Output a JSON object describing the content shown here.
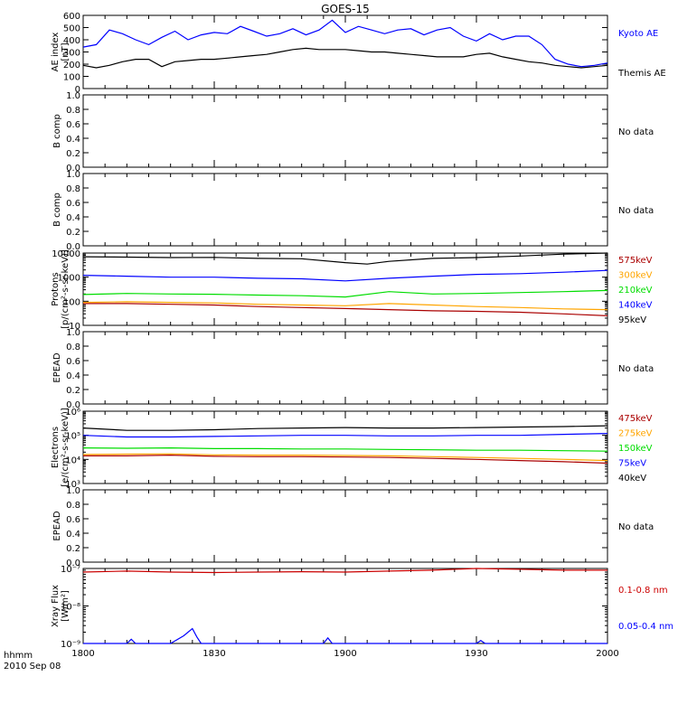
{
  "title": "GOES-15",
  "footer": {
    "time_label": "hhmm",
    "date_label": "2010 Sep 08"
  },
  "x_axis": {
    "ticks": [
      {
        "t": 0,
        "label": "1800"
      },
      {
        "t": 30,
        "label": "1830"
      },
      {
        "t": 60,
        "label": "1900"
      },
      {
        "t": 90,
        "label": "1930"
      },
      {
        "t": 120,
        "label": "2000"
      }
    ]
  },
  "colors": {
    "black": "#000000",
    "blue": "#0000ff",
    "green": "#00dd00",
    "orange": "#ffa500",
    "red": "#cc0000",
    "darkred": "#aa0000"
  },
  "no_data_label": "No data",
  "chart_data": [
    {
      "id": "ae",
      "type": "line",
      "ylabel": [
        "AE index",
        "[nT]"
      ],
      "ylim": [
        0,
        600
      ],
      "yscale": "linear",
      "yticks": [
        0,
        100,
        200,
        300,
        400,
        500,
        600
      ],
      "ytick_labels": [
        "0",
        "100",
        "200",
        "300",
        "400",
        "500",
        "600"
      ],
      "x_unit": "minutes after 1800 UT",
      "series": [
        {
          "name": "Kyoto AE",
          "color": "#0000ff",
          "x": [
            0,
            3,
            6,
            9,
            12,
            15,
            18,
            21,
            24,
            27,
            30,
            33,
            36,
            39,
            42,
            45,
            48,
            51,
            54,
            57,
            60,
            63,
            66,
            69,
            72,
            75,
            78,
            81,
            84,
            87,
            90,
            93,
            96,
            99,
            102,
            105,
            108,
            111,
            114,
            117,
            120
          ],
          "y": [
            340,
            360,
            480,
            450,
            400,
            360,
            420,
            470,
            400,
            440,
            460,
            450,
            510,
            470,
            430,
            450,
            490,
            440,
            480,
            560,
            460,
            510,
            480,
            450,
            480,
            490,
            440,
            480,
            500,
            430,
            390,
            450,
            400,
            430,
            430,
            360,
            240,
            200,
            180,
            190,
            210
          ]
        },
        {
          "name": "Themis AE",
          "color": "#000000",
          "x": [
            0,
            3,
            6,
            9,
            12,
            15,
            18,
            21,
            24,
            27,
            30,
            33,
            36,
            39,
            42,
            45,
            48,
            51,
            54,
            57,
            60,
            63,
            66,
            69,
            72,
            75,
            78,
            81,
            84,
            87,
            90,
            93,
            96,
            99,
            102,
            105,
            108,
            111,
            114,
            117,
            120
          ],
          "y": [
            190,
            170,
            190,
            220,
            240,
            240,
            180,
            220,
            230,
            240,
            240,
            250,
            260,
            270,
            280,
            300,
            320,
            330,
            320,
            320,
            320,
            310,
            300,
            300,
            290,
            280,
            270,
            260,
            260,
            260,
            280,
            290,
            260,
            240,
            220,
            210,
            190,
            180,
            170,
            180,
            190
          ]
        }
      ]
    },
    {
      "id": "bcomp1",
      "type": "line",
      "ylabel": [
        "B comp"
      ],
      "ylim": [
        0,
        1
      ],
      "yscale": "linear",
      "yticks": [
        0,
        0.2,
        0.4,
        0.6,
        0.8,
        1.0
      ],
      "ytick_labels": [
        "0.0",
        "0.2",
        "0.4",
        "0.6",
        "0.8",
        "1.0"
      ],
      "no_data": true,
      "series": []
    },
    {
      "id": "bcomp2",
      "type": "line",
      "ylabel": [
        "B comp"
      ],
      "ylim": [
        0,
        1
      ],
      "yscale": "linear",
      "yticks": [
        0,
        0.2,
        0.4,
        0.6,
        0.8,
        1.0
      ],
      "ytick_labels": [
        "0.0",
        "0.2",
        "0.4",
        "0.6",
        "0.8",
        "1.0"
      ],
      "no_data": true,
      "series": []
    },
    {
      "id": "protons",
      "type": "line",
      "ylabel": [
        "Protons",
        "[p/(cm²-s-sr-keV)]"
      ],
      "ylim": [
        10,
        10000
      ],
      "yscale": "log",
      "yticks": [
        10,
        100,
        1000,
        10000
      ],
      "ytick_labels": [
        "10",
        "100",
        "1000",
        "10000"
      ],
      "x_unit": "minutes after 1800 UT",
      "series": [
        {
          "name": "575keV",
          "color": "#aa0000",
          "x": [
            0,
            10,
            20,
            30,
            40,
            50,
            60,
            70,
            80,
            90,
            100,
            110,
            120
          ],
          "y": [
            80,
            80,
            75,
            70,
            60,
            55,
            50,
            45,
            40,
            38,
            35,
            30,
            25
          ]
        },
        {
          "name": "300keV",
          "color": "#ffa500",
          "x": [
            0,
            10,
            20,
            30,
            40,
            50,
            60,
            70,
            80,
            90,
            100,
            110,
            120
          ],
          "y": [
            90,
            95,
            90,
            85,
            75,
            70,
            65,
            80,
            70,
            60,
            55,
            48,
            45
          ]
        },
        {
          "name": "210keV",
          "color": "#00dd00",
          "x": [
            0,
            10,
            20,
            30,
            40,
            50,
            60,
            70,
            80,
            90,
            100,
            110,
            120
          ],
          "y": [
            190,
            210,
            200,
            195,
            180,
            170,
            150,
            250,
            200,
            210,
            230,
            250,
            280
          ]
        },
        {
          "name": "140keV",
          "color": "#0000ff",
          "x": [
            0,
            10,
            20,
            30,
            40,
            50,
            60,
            70,
            80,
            90,
            100,
            110,
            120
          ],
          "y": [
            1200,
            1100,
            1000,
            1000,
            900,
            850,
            700,
            900,
            1100,
            1300,
            1400,
            1600,
            1900
          ]
        },
        {
          "name": "95keV",
          "color": "#000000",
          "x": [
            0,
            10,
            20,
            30,
            40,
            50,
            60,
            65,
            70,
            80,
            90,
            100,
            110,
            120
          ],
          "y": [
            7000,
            6800,
            6500,
            6600,
            6000,
            5800,
            4000,
            3500,
            4500,
            6000,
            6500,
            7500,
            9000,
            10000
          ]
        }
      ]
    },
    {
      "id": "epead1",
      "type": "line",
      "ylabel": [
        "EPEAD"
      ],
      "ylim": [
        0,
        1
      ],
      "yscale": "linear",
      "yticks": [
        0,
        0.2,
        0.4,
        0.6,
        0.8,
        1.0
      ],
      "ytick_labels": [
        "0.0",
        "0.2",
        "0.4",
        "0.6",
        "0.8",
        "1.0"
      ],
      "no_data": true,
      "series": []
    },
    {
      "id": "electrons",
      "type": "line",
      "ylabel": [
        "Electrons",
        "[e/(cm²-s-sr-keV)]"
      ],
      "ylim": [
        1000,
        1000000
      ],
      "yscale": "log",
      "yticks": [
        1000,
        10000,
        100000,
        1000000
      ],
      "ytick_labels": [
        "10³",
        "10⁴",
        "10⁵",
        "10⁶"
      ],
      "x_unit": "minutes after 1800 UT",
      "series": [
        {
          "name": "475keV",
          "color": "#aa0000",
          "x": [
            0,
            10,
            20,
            30,
            40,
            50,
            60,
            70,
            80,
            90,
            100,
            110,
            120
          ],
          "y": [
            14000,
            14000,
            15000,
            13500,
            13000,
            13000,
            12500,
            12000,
            11000,
            10000,
            9000,
            8000,
            7000
          ]
        },
        {
          "name": "275keV",
          "color": "#ffa500",
          "x": [
            0,
            10,
            20,
            30,
            40,
            50,
            60,
            70,
            80,
            90,
            100,
            110,
            120
          ],
          "y": [
            16000,
            16500,
            17000,
            15500,
            15000,
            15000,
            14500,
            14000,
            13000,
            12000,
            11000,
            10000,
            9000
          ]
        },
        {
          "name": "150keV",
          "color": "#00dd00",
          "x": [
            0,
            10,
            20,
            30,
            40,
            50,
            60,
            70,
            80,
            90,
            100,
            110,
            120
          ],
          "y": [
            30000,
            29000,
            30000,
            28000,
            28000,
            27000,
            27000,
            26000,
            25000,
            24000,
            24000,
            23000,
            22000
          ]
        },
        {
          "name": "75keV",
          "color": "#0000ff",
          "x": [
            0,
            10,
            20,
            30,
            40,
            50,
            60,
            70,
            80,
            90,
            100,
            110,
            120
          ],
          "y": [
            100000,
            85000,
            85000,
            90000,
            95000,
            100000,
            100000,
            95000,
            95000,
            100000,
            100000,
            110000,
            120000
          ]
        },
        {
          "name": "40keV",
          "color": "#000000",
          "x": [
            0,
            10,
            20,
            30,
            40,
            50,
            60,
            70,
            80,
            90,
            100,
            110,
            120
          ],
          "y": [
            200000,
            160000,
            160000,
            170000,
            190000,
            200000,
            210000,
            200000,
            200000,
            210000,
            220000,
            230000,
            250000
          ]
        }
      ]
    },
    {
      "id": "epead2",
      "type": "line",
      "ylabel": [
        "EPEAD"
      ],
      "ylim": [
        0,
        1
      ],
      "yscale": "linear",
      "yticks": [
        0,
        0.2,
        0.4,
        0.6,
        0.8,
        1.0
      ],
      "ytick_labels": [
        "0.0",
        "0.2",
        "0.4",
        "0.6",
        "0.8",
        "1.0"
      ],
      "no_data": true,
      "series": []
    },
    {
      "id": "xray",
      "type": "line",
      "ylabel": [
        "Xray Flux",
        "[W/m²]"
      ],
      "ylim": [
        1e-09,
        1e-07
      ],
      "yscale": "log",
      "yticks": [
        1e-09,
        1e-08,
        1e-07
      ],
      "ytick_labels": [
        "10⁻⁹",
        "10⁻⁸",
        "10⁻⁷"
      ],
      "x_unit": "minutes after 1800 UT",
      "series": [
        {
          "name": "0.1-0.8 nm",
          "color": "#cc0000",
          "x": [
            0,
            10,
            20,
            30,
            40,
            50,
            60,
            70,
            80,
            90,
            100,
            110,
            120
          ],
          "y": [
            8e-08,
            8.5e-08,
            8e-08,
            7.8e-08,
            8e-08,
            8.2e-08,
            8e-08,
            8.5e-08,
            9e-08,
            1e-07,
            9.5e-08,
            9e-08,
            9e-08
          ]
        },
        {
          "name": "0.05-0.4 nm",
          "color": "#0000ff",
          "x": [
            0,
            10,
            11,
            12,
            20,
            23,
            25,
            26,
            27,
            30,
            40,
            55,
            56,
            57,
            60,
            70,
            90,
            91,
            92,
            100,
            120
          ],
          "y": [
            1e-09,
            1e-09,
            1.3e-09,
            1e-09,
            1e-09,
            1.6e-09,
            2.5e-09,
            1.5e-09,
            1e-09,
            1e-09,
            1e-09,
            1e-09,
            1.4e-09,
            1e-09,
            1e-09,
            1e-09,
            1e-09,
            1.2e-09,
            1e-09,
            1e-09,
            1e-09
          ]
        }
      ]
    }
  ]
}
